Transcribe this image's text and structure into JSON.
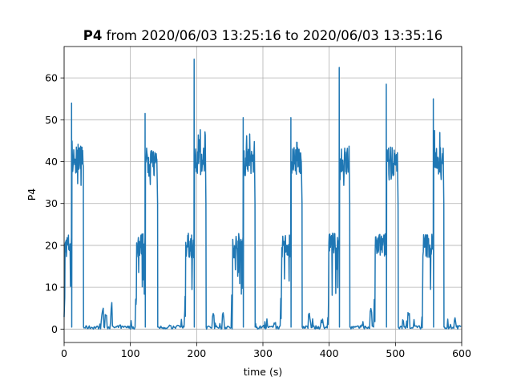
{
  "chart_data": {
    "type": "line",
    "title_bold": "P4",
    "title_rest": " from 2020/06/03 13:25:16 to 2020/06/03 13:35:16",
    "xlabel": "time (s)",
    "ylabel": "P4",
    "xlim": [
      0,
      600
    ],
    "ylim": [
      -3.2,
      67.5
    ],
    "xticks": [
      0,
      100,
      200,
      300,
      400,
      500,
      600
    ],
    "yticks": [
      0,
      10,
      20,
      30,
      40,
      50,
      60
    ],
    "grid": true,
    "series": [
      {
        "color": "#1f77b4",
        "cycles": [
          {
            "low_start": 0,
            "spike_t": 11,
            "spike_v": 54,
            "high_start": 12,
            "high_end": 29,
            "high_peak": 46,
            "drop_t": 29,
            "idle_end": 108,
            "bumps": [
              [
                58,
                5
              ],
              [
                63,
                5
              ],
              [
                71,
                7
              ],
              [
                84,
                1
              ]
            ]
          },
          {
            "low_start": 108,
            "spike_t": 122,
            "spike_v": 51.5,
            "high_start": 123,
            "high_end": 140,
            "high_peak": 45,
            "drop_t": 141,
            "idle_end": 182,
            "bumps": [
              [
                160,
                1
              ],
              [
                172,
                1
              ]
            ]
          },
          {
            "low_start": 182,
            "spike_t": 196,
            "spike_v": 64.5,
            "high_start": 197,
            "high_end": 213,
            "high_peak": 48,
            "drop_t": 214,
            "idle_end": 253,
            "bumps": [
              [
                225,
                4
              ],
              [
                240,
                4
              ]
            ]
          },
          {
            "low_start": 253,
            "spike_t": 270,
            "spike_v": 50.5,
            "high_start": 271,
            "high_end": 287,
            "high_peak": 47,
            "drop_t": 288,
            "idle_end": 327,
            "bumps": [
              [
                300,
                1
              ],
              [
                318,
                2
              ]
            ]
          },
          {
            "low_start": 327,
            "spike_t": 342,
            "spike_v": 50.5,
            "high_start": 343,
            "high_end": 358,
            "high_peak": 45,
            "drop_t": 359,
            "idle_end": 398,
            "bumps": [
              [
                370,
                4
              ],
              [
                390,
                3
              ]
            ]
          },
          {
            "low_start": 398,
            "spike_t": 415,
            "spike_v": 62.5,
            "high_start": 416,
            "high_end": 430,
            "high_peak": 46,
            "drop_t": 431,
            "idle_end": 468,
            "bumps": [
              [
                450,
                1
              ],
              [
                463,
                5
              ]
            ]
          },
          {
            "low_start": 468,
            "spike_t": 486,
            "spike_v": 58.5,
            "high_start": 487,
            "high_end": 503,
            "high_peak": 46,
            "drop_t": 504,
            "idle_end": 540,
            "bumps": [
              [
                520,
                5
              ],
              [
                530,
                1
              ]
            ]
          },
          {
            "low_start": 540,
            "spike_t": 557,
            "spike_v": 55,
            "high_start": 558,
            "high_end": 572,
            "high_peak": 48,
            "drop_t": 573,
            "idle_end": 600,
            "bumps": [
              [
                590,
                3
              ],
              [
                596,
                1
              ]
            ]
          }
        ]
      }
    ]
  }
}
